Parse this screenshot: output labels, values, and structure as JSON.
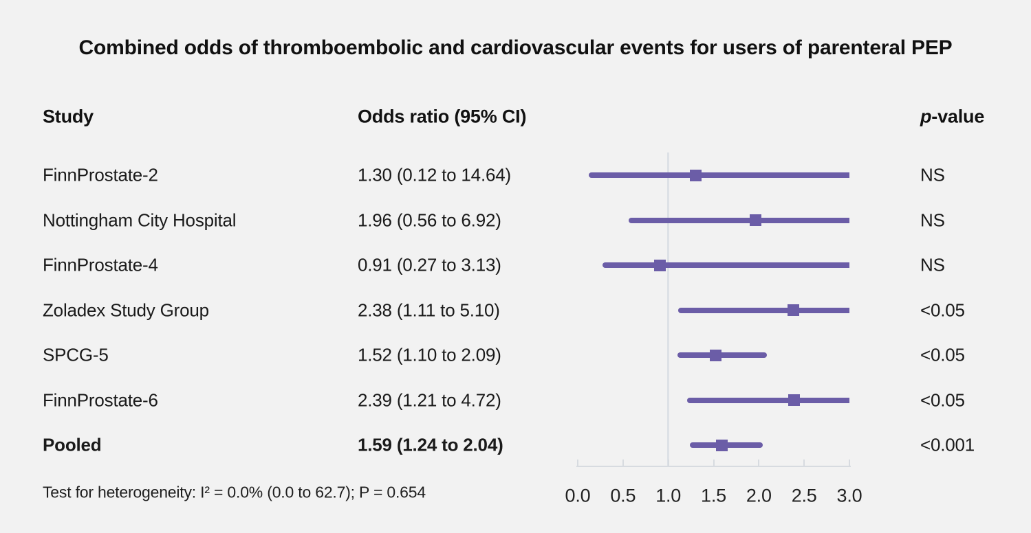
{
  "title": "Combined odds of thromboembolic and cardiovascular events for users of parenteral PEP",
  "columns": {
    "study": "Study",
    "or_ci": "Odds ratio (95% CI)",
    "p_value": {
      "italic": "p",
      "rest": "-value"
    }
  },
  "footer": "Test for heterogeneity: I² = 0.0% (0.0 to 62.7); P = 0.654",
  "colors": {
    "background": "#f2f2f2",
    "marker": "#6b5da7",
    "reference_line": "#dde1e6",
    "axis": "#d7dbe0",
    "text": "#1a1a1a"
  },
  "chart_data": {
    "type": "forest",
    "title": "Combined odds of thromboembolic and cardiovascular events for users of parenteral PEP",
    "xlim": [
      0,
      3
    ],
    "reference_value": 1.0,
    "ticks": [
      0,
      0.5,
      1,
      1.5,
      2,
      2.5,
      3
    ],
    "tick_labels": [
      "0.0",
      "0.5",
      "1.0",
      "1.5",
      "2.0",
      "2.5",
      "3.0"
    ],
    "heterogeneity_note": "Test for heterogeneity: I² = 0.0% (0.0 to 62.7); P = 0.654",
    "rows": [
      {
        "study": "FinnProstate-2",
        "or_ci": "1.30 (0.12 to 14.64)",
        "or": 1.3,
        "ci_low": 0.12,
        "ci_high": 14.64,
        "p_value": "NS",
        "bold": false
      },
      {
        "study": "Nottingham City Hospital",
        "or_ci": "1.96 (0.56 to 6.92)",
        "or": 1.96,
        "ci_low": 0.56,
        "ci_high": 6.92,
        "p_value": "NS",
        "bold": false
      },
      {
        "study": "FinnProstate-4",
        "or_ci": "0.91 (0.27 to 3.13)",
        "or": 0.91,
        "ci_low": 0.27,
        "ci_high": 3.13,
        "p_value": "NS",
        "bold": false
      },
      {
        "study": "Zoladex Study Group",
        "or_ci": "2.38 (1.11 to 5.10)",
        "or": 2.38,
        "ci_low": 1.11,
        "ci_high": 5.1,
        "p_value": "<0.05",
        "bold": false
      },
      {
        "study": "SPCG-5",
        "or_ci": "1.52 (1.10 to 2.09)",
        "or": 1.52,
        "ci_low": 1.1,
        "ci_high": 2.09,
        "p_value": "<0.05",
        "bold": false
      },
      {
        "study": "FinnProstate-6",
        "or_ci": "2.39 (1.21 to 4.72)",
        "or": 2.39,
        "ci_low": 1.21,
        "ci_high": 4.72,
        "p_value": "<0.05",
        "bold": false
      },
      {
        "study": "Pooled",
        "or_ci": "1.59 (1.24 to 2.04)",
        "or": 1.59,
        "ci_low": 1.24,
        "ci_high": 2.04,
        "p_value": "<0.001",
        "bold": true
      }
    ]
  }
}
